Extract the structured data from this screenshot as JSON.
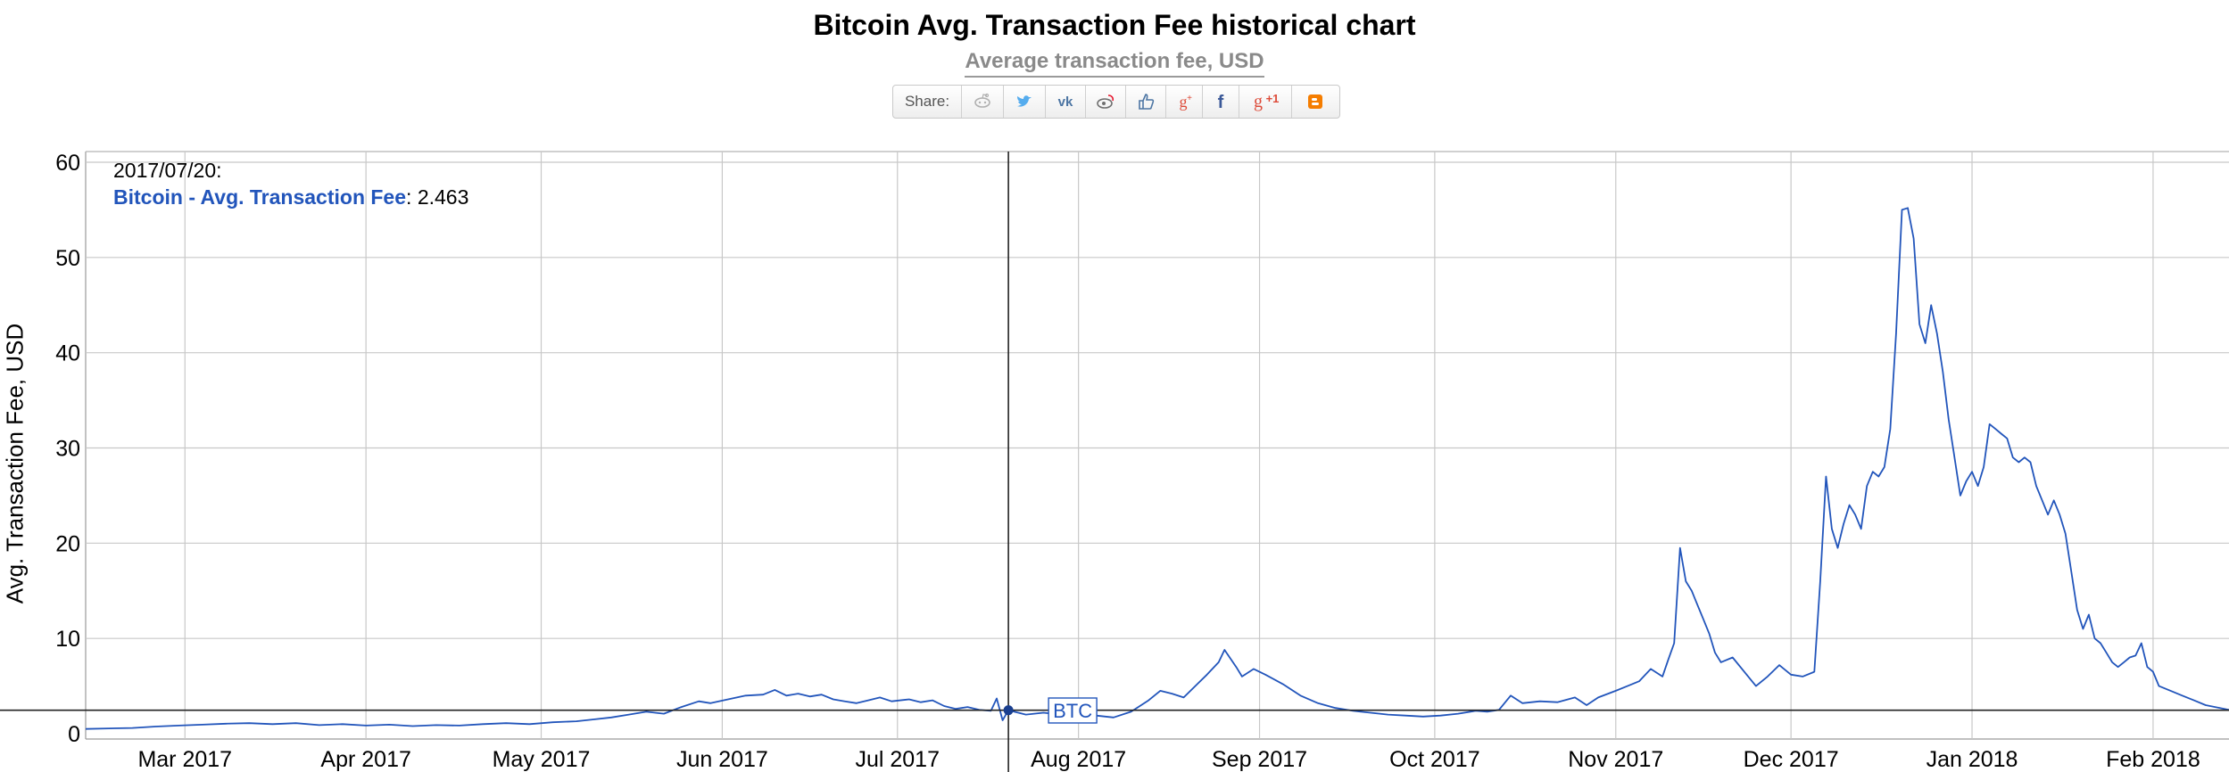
{
  "page": {
    "title": "Bitcoin Avg. Transaction Fee historical chart",
    "subtitle": "Average transaction fee, USD"
  },
  "share": {
    "label": "Share:",
    "buttons": [
      {
        "name": "reddit",
        "icon": "reddit-icon",
        "color": "#b0b0b0"
      },
      {
        "name": "twitter",
        "icon": "twitter-icon",
        "color": "#55acee"
      },
      {
        "name": "vk",
        "icon": "vk-icon",
        "color": "#4c75a3"
      },
      {
        "name": "weibo",
        "icon": "weibo-icon",
        "color": "#6f6f6f"
      },
      {
        "name": "like",
        "icon": "thumbs-up-icon",
        "color": "#4c75a3"
      },
      {
        "name": "google-plus",
        "icon": "google-plus-icon",
        "color": "#dd4b39"
      },
      {
        "name": "facebook",
        "icon": "facebook-icon",
        "color": "#3b5998"
      },
      {
        "name": "google-plus-one",
        "icon": "google-plus-one-icon",
        "color": "#dd4b39"
      },
      {
        "name": "blogger",
        "icon": "blogger-icon",
        "color": "#f57d00"
      }
    ]
  },
  "readout": {
    "date": "2017/07/20:",
    "series_name": "Bitcoin - Avg. Transaction Fee",
    "separator": ": ",
    "value": "2.463"
  },
  "chart_data": {
    "type": "line",
    "title": "Bitcoin Avg. Transaction Fee historical chart",
    "subtitle": "Average transaction fee, USD",
    "xlabel": "",
    "ylabel": "Avg. Transaction Fee, USD",
    "xlim": [
      "2017-02-12",
      "2018-02-14"
    ],
    "ylim": [
      0,
      60
    ],
    "y_ticks": [
      0,
      10,
      20,
      30,
      40,
      50,
      60
    ],
    "x_tick_labels": [
      "Mar 2017",
      "Apr 2017",
      "May 2017",
      "Jun 2017",
      "Jul 2017",
      "Aug 2017",
      "Sep 2017",
      "Oct 2017",
      "Nov 2017",
      "Dec 2017",
      "Jan 2018",
      "Feb 2018"
    ],
    "x_tick_dates": [
      "2017-03-01",
      "2017-04-01",
      "2017-05-01",
      "2017-06-01",
      "2017-07-01",
      "2017-08-01",
      "2017-09-01",
      "2017-10-01",
      "2017-11-01",
      "2017-12-01",
      "2018-01-01",
      "2018-02-01"
    ],
    "grid": true,
    "line_color": "#2255bb",
    "crosshair": {
      "x": "2017-07-20",
      "y": 2.463
    },
    "annotation": {
      "label": "BTC",
      "x": "2017-07-31"
    },
    "series": [
      {
        "name": "Bitcoin - Avg. Transaction Fee",
        "points": [
          [
            "2017-02-12",
            0.5
          ],
          [
            "2017-02-16",
            0.55
          ],
          [
            "2017-02-20",
            0.6
          ],
          [
            "2017-02-24",
            0.75
          ],
          [
            "2017-02-28",
            0.85
          ],
          [
            "2017-03-04",
            0.95
          ],
          [
            "2017-03-08",
            1.05
          ],
          [
            "2017-03-12",
            1.1
          ],
          [
            "2017-03-16",
            1.0
          ],
          [
            "2017-03-20",
            1.1
          ],
          [
            "2017-03-24",
            0.9
          ],
          [
            "2017-03-28",
            1.0
          ],
          [
            "2017-04-01",
            0.85
          ],
          [
            "2017-04-05",
            0.95
          ],
          [
            "2017-04-09",
            0.8
          ],
          [
            "2017-04-13",
            0.9
          ],
          [
            "2017-04-17",
            0.85
          ],
          [
            "2017-04-21",
            1.0
          ],
          [
            "2017-04-25",
            1.1
          ],
          [
            "2017-04-29",
            1.0
          ],
          [
            "2017-05-03",
            1.2
          ],
          [
            "2017-05-07",
            1.3
          ],
          [
            "2017-05-10",
            1.5
          ],
          [
            "2017-05-13",
            1.7
          ],
          [
            "2017-05-16",
            2.0
          ],
          [
            "2017-05-19",
            2.3
          ],
          [
            "2017-05-22",
            2.1
          ],
          [
            "2017-05-25",
            2.8
          ],
          [
            "2017-05-28",
            3.4
          ],
          [
            "2017-05-30",
            3.2
          ],
          [
            "2017-06-02",
            3.6
          ],
          [
            "2017-06-05",
            4.0
          ],
          [
            "2017-06-08",
            4.1
          ],
          [
            "2017-06-10",
            4.6
          ],
          [
            "2017-06-12",
            4.0
          ],
          [
            "2017-06-14",
            4.2
          ],
          [
            "2017-06-16",
            3.9
          ],
          [
            "2017-06-18",
            4.1
          ],
          [
            "2017-06-20",
            3.6
          ],
          [
            "2017-06-22",
            3.4
          ],
          [
            "2017-06-24",
            3.2
          ],
          [
            "2017-06-26",
            3.5
          ],
          [
            "2017-06-28",
            3.8
          ],
          [
            "2017-06-30",
            3.4
          ],
          [
            "2017-07-03",
            3.6
          ],
          [
            "2017-07-05",
            3.3
          ],
          [
            "2017-07-07",
            3.5
          ],
          [
            "2017-07-09",
            2.9
          ],
          [
            "2017-07-11",
            2.6
          ],
          [
            "2017-07-13",
            2.8
          ],
          [
            "2017-07-15",
            2.5
          ],
          [
            "2017-07-17",
            2.4
          ],
          [
            "2017-07-18",
            3.7
          ],
          [
            "2017-07-19",
            1.4
          ],
          [
            "2017-07-20",
            2.463
          ],
          [
            "2017-07-23",
            2.0
          ],
          [
            "2017-07-26",
            2.2
          ],
          [
            "2017-07-29",
            2.0
          ],
          [
            "2017-08-01",
            1.8
          ],
          [
            "2017-08-04",
            1.9
          ],
          [
            "2017-08-07",
            1.7
          ],
          [
            "2017-08-10",
            2.3
          ],
          [
            "2017-08-13",
            3.5
          ],
          [
            "2017-08-15",
            4.5
          ],
          [
            "2017-08-17",
            4.2
          ],
          [
            "2017-08-19",
            3.8
          ],
          [
            "2017-08-21",
            5.0
          ],
          [
            "2017-08-23",
            6.2
          ],
          [
            "2017-08-25",
            7.5
          ],
          [
            "2017-08-26",
            8.8
          ],
          [
            "2017-08-28",
            7.0
          ],
          [
            "2017-08-29",
            6.0
          ],
          [
            "2017-08-31",
            6.8
          ],
          [
            "2017-09-02",
            6.2
          ],
          [
            "2017-09-05",
            5.2
          ],
          [
            "2017-09-08",
            4.0
          ],
          [
            "2017-09-11",
            3.2
          ],
          [
            "2017-09-14",
            2.7
          ],
          [
            "2017-09-17",
            2.4
          ],
          [
            "2017-09-20",
            2.2
          ],
          [
            "2017-09-23",
            2.0
          ],
          [
            "2017-09-26",
            1.9
          ],
          [
            "2017-09-29",
            1.8
          ],
          [
            "2017-10-02",
            1.9
          ],
          [
            "2017-10-05",
            2.1
          ],
          [
            "2017-10-08",
            2.4
          ],
          [
            "2017-10-10",
            2.3
          ],
          [
            "2017-10-12",
            2.5
          ],
          [
            "2017-10-14",
            4.0
          ],
          [
            "2017-10-16",
            3.2
          ],
          [
            "2017-10-19",
            3.4
          ],
          [
            "2017-10-22",
            3.3
          ],
          [
            "2017-10-25",
            3.8
          ],
          [
            "2017-10-27",
            3.0
          ],
          [
            "2017-10-29",
            3.8
          ],
          [
            "2017-11-01",
            4.5
          ],
          [
            "2017-11-03",
            5.0
          ],
          [
            "2017-11-05",
            5.5
          ],
          [
            "2017-11-07",
            6.8
          ],
          [
            "2017-11-09",
            6.0
          ],
          [
            "2017-11-10",
            7.8
          ],
          [
            "2017-11-11",
            9.5
          ],
          [
            "2017-11-12",
            19.5
          ],
          [
            "2017-11-13",
            16.0
          ],
          [
            "2017-11-14",
            15.0
          ],
          [
            "2017-11-15",
            13.5
          ],
          [
            "2017-11-16",
            12.0
          ],
          [
            "2017-11-17",
            10.5
          ],
          [
            "2017-11-18",
            8.5
          ],
          [
            "2017-11-19",
            7.5
          ],
          [
            "2017-11-21",
            8.0
          ],
          [
            "2017-11-23",
            6.5
          ],
          [
            "2017-11-25",
            5.0
          ],
          [
            "2017-11-27",
            6.0
          ],
          [
            "2017-11-29",
            7.2
          ],
          [
            "2017-12-01",
            6.2
          ],
          [
            "2017-12-03",
            6.0
          ],
          [
            "2017-12-05",
            6.5
          ],
          [
            "2017-12-06",
            16.0
          ],
          [
            "2017-12-07",
            27.0
          ],
          [
            "2017-12-08",
            21.5
          ],
          [
            "2017-12-09",
            19.5
          ],
          [
            "2017-12-10",
            22.0
          ],
          [
            "2017-12-11",
            24.0
          ],
          [
            "2017-12-12",
            23.0
          ],
          [
            "2017-12-13",
            21.5
          ],
          [
            "2017-12-14",
            26.0
          ],
          [
            "2017-12-15",
            27.5
          ],
          [
            "2017-12-16",
            27.0
          ],
          [
            "2017-12-17",
            28.0
          ],
          [
            "2017-12-18",
            32.0
          ],
          [
            "2017-12-19",
            42.0
          ],
          [
            "2017-12-20",
            55.0
          ],
          [
            "2017-12-21",
            55.2
          ],
          [
            "2017-12-22",
            52.0
          ],
          [
            "2017-12-23",
            43.0
          ],
          [
            "2017-12-24",
            41.0
          ],
          [
            "2017-12-25",
            45.0
          ],
          [
            "2017-12-26",
            42.0
          ],
          [
            "2017-12-27",
            38.0
          ],
          [
            "2017-12-28",
            33.0
          ],
          [
            "2017-12-29",
            29.0
          ],
          [
            "2017-12-30",
            25.0
          ],
          [
            "2017-12-31",
            26.5
          ],
          [
            "2018-01-01",
            27.5
          ],
          [
            "2018-01-02",
            26.0
          ],
          [
            "2018-01-03",
            28.0
          ],
          [
            "2018-01-04",
            32.5
          ],
          [
            "2018-01-05",
            32.0
          ],
          [
            "2018-01-06",
            31.5
          ],
          [
            "2018-01-07",
            31.0
          ],
          [
            "2018-01-08",
            29.0
          ],
          [
            "2018-01-09",
            28.5
          ],
          [
            "2018-01-10",
            29.0
          ],
          [
            "2018-01-11",
            28.5
          ],
          [
            "2018-01-12",
            26.0
          ],
          [
            "2018-01-13",
            24.5
          ],
          [
            "2018-01-14",
            23.0
          ],
          [
            "2018-01-15",
            24.5
          ],
          [
            "2018-01-16",
            23.0
          ],
          [
            "2018-01-17",
            21.0
          ],
          [
            "2018-01-18",
            17.0
          ],
          [
            "2018-01-19",
            13.0
          ],
          [
            "2018-01-20",
            11.0
          ],
          [
            "2018-01-21",
            12.5
          ],
          [
            "2018-01-22",
            10.0
          ],
          [
            "2018-01-23",
            9.5
          ],
          [
            "2018-01-24",
            8.5
          ],
          [
            "2018-01-25",
            7.5
          ],
          [
            "2018-01-26",
            7.0
          ],
          [
            "2018-01-27",
            7.5
          ],
          [
            "2018-01-28",
            8.0
          ],
          [
            "2018-01-29",
            8.2
          ],
          [
            "2018-01-30",
            9.5
          ],
          [
            "2018-01-31",
            7.0
          ],
          [
            "2018-02-01",
            6.5
          ],
          [
            "2018-02-02",
            5.0
          ],
          [
            "2018-02-04",
            4.5
          ],
          [
            "2018-02-06",
            4.0
          ],
          [
            "2018-02-08",
            3.5
          ],
          [
            "2018-02-10",
            3.0
          ],
          [
            "2018-02-14",
            2.5
          ]
        ]
      }
    ]
  }
}
